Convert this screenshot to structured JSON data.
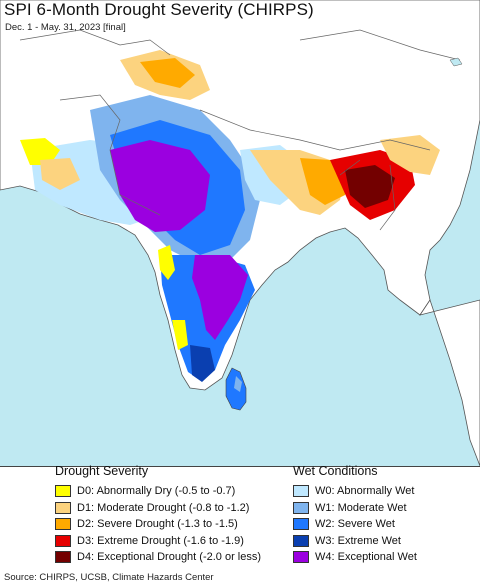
{
  "header": {
    "title": "SPI 6-Month Drought Severity (CHIRPS)",
    "subtitle": "Dec. 1 - May. 31, 2023 [final]"
  },
  "colors": {
    "ocean": "#bfe9f2",
    "land": "#ffffff",
    "border": "#555555"
  },
  "legend": {
    "drought": {
      "heading": "Drought Severity",
      "items": [
        {
          "label": "D0: Abnormally Dry (-0.5 to -0.7)",
          "color": "#ffff00"
        },
        {
          "label": "D1: Moderate Drought (-0.8 to -1.2)",
          "color": "#fcd37f"
        },
        {
          "label": "D2: Severe Drought (-1.3 to -1.5)",
          "color": "#ffaa00"
        },
        {
          "label": "D3: Extreme Drought (-1.6 to -1.9)",
          "color": "#e60000"
        },
        {
          "label": "D4: Exceptional Drought (-2.0 or less)",
          "color": "#730000"
        }
      ]
    },
    "wet": {
      "heading": "Wet Conditions",
      "items": [
        {
          "label": "W0: Abnormally Wet",
          "color": "#bfe8ff"
        },
        {
          "label": "W1: Moderate Wet",
          "color": "#7fb4ee"
        },
        {
          "label": "W2: Severe Wet",
          "color": "#1f78ff"
        },
        {
          "label": "W3: Extreme Wet",
          "color": "#0a3fb0"
        },
        {
          "label": "W4: Exceptional Wet",
          "color": "#9b00e0"
        }
      ]
    }
  },
  "footer": {
    "source": "Source: CHIRPS, UCSB, Climate Hazards Center"
  }
}
